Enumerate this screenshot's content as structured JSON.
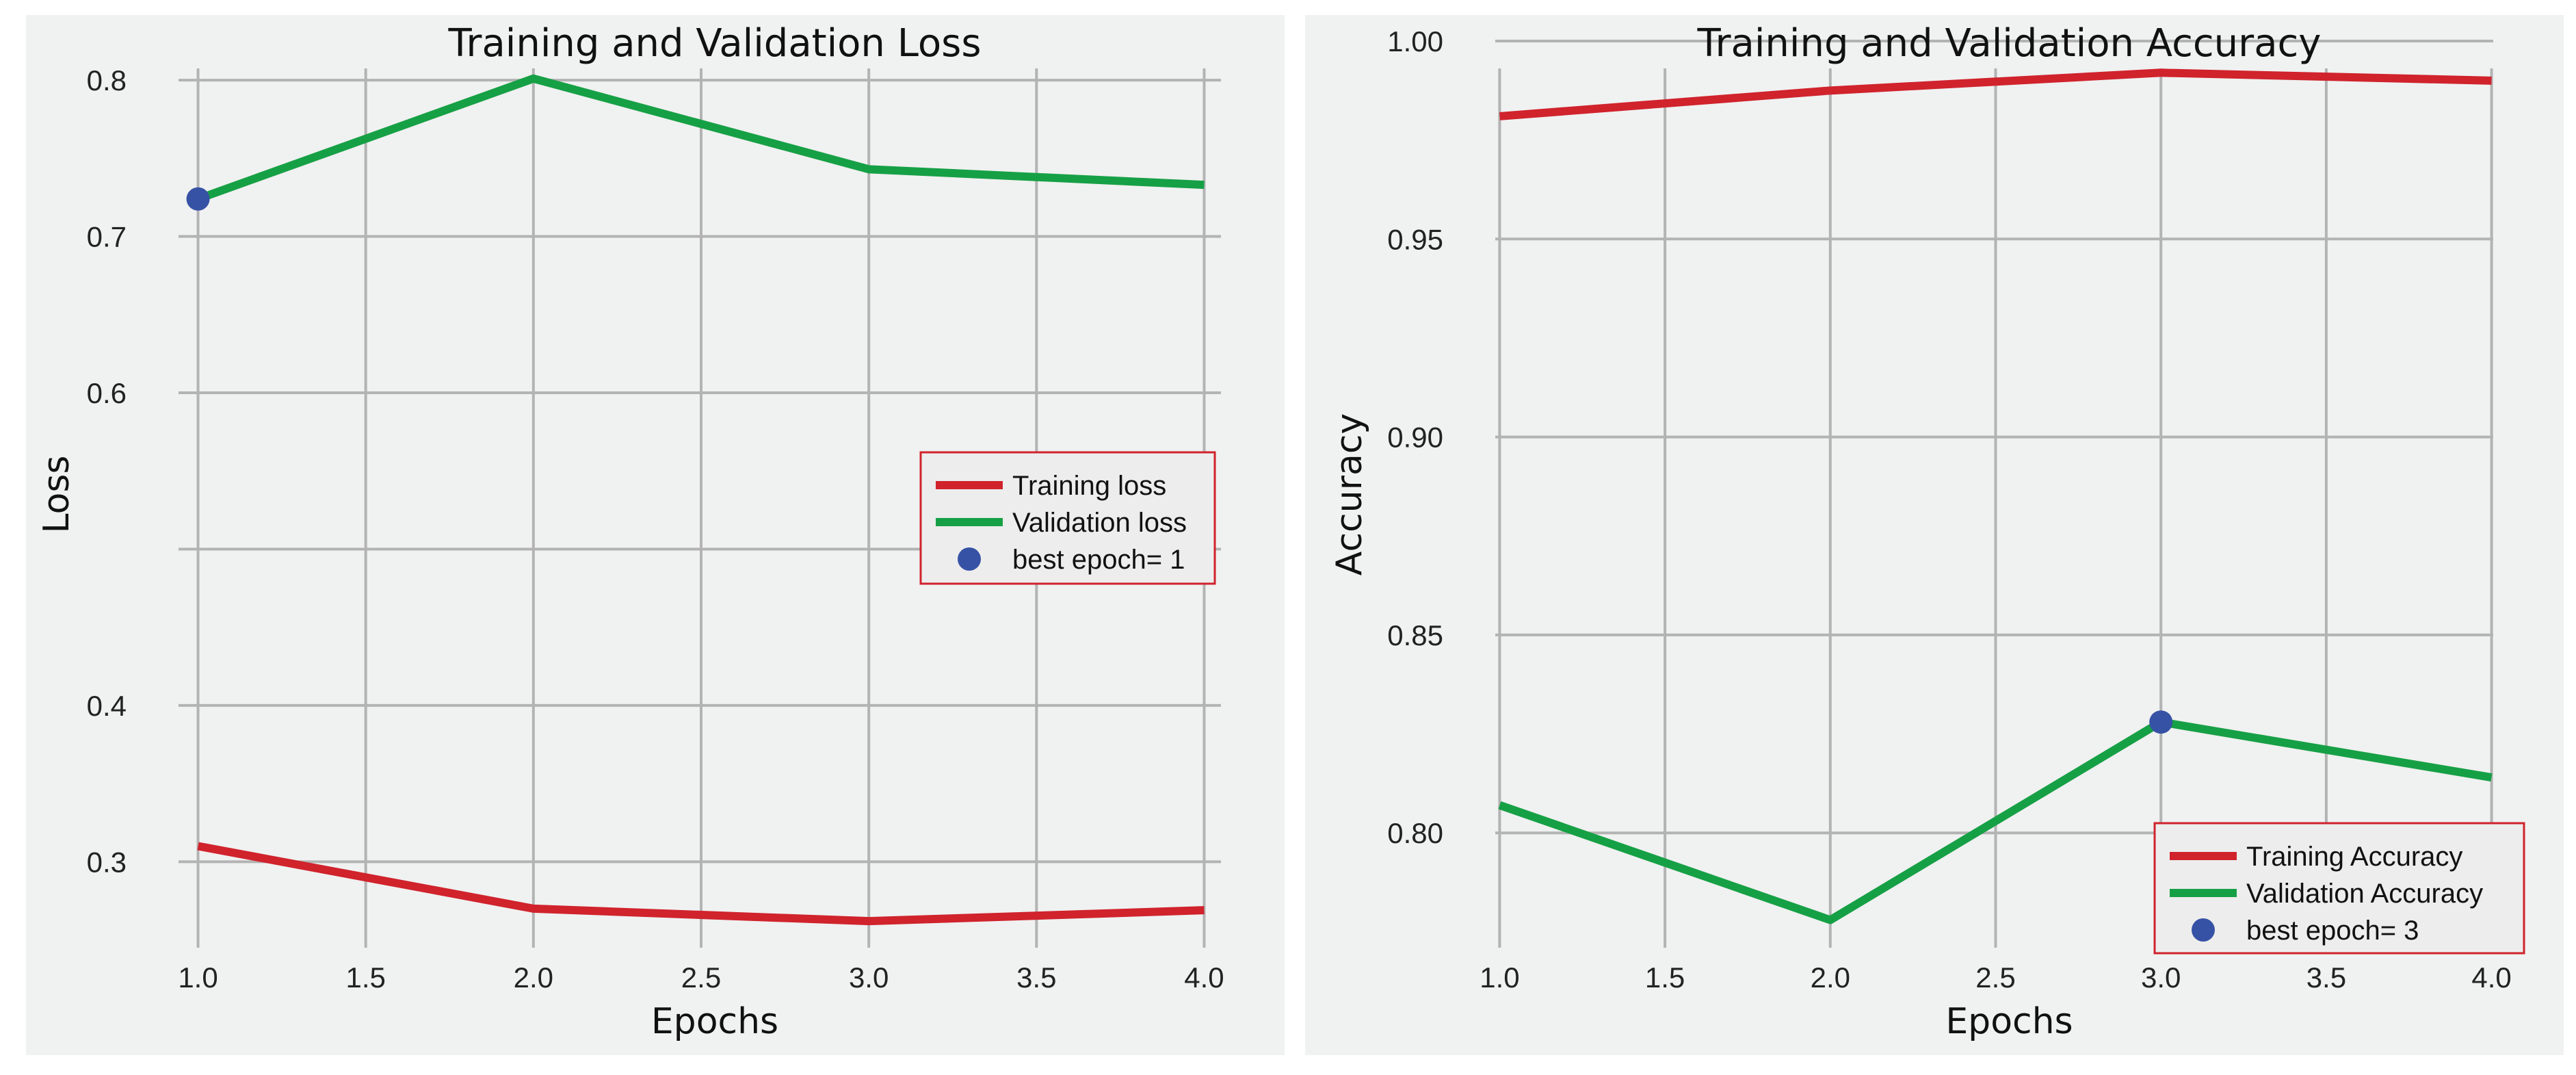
{
  "chart_data": [
    {
      "type": "line",
      "title": "Training and Validation Loss",
      "xlabel": "Epochs",
      "ylabel": "Loss",
      "x": [
        1.0,
        2.0,
        3.0,
        4.0
      ],
      "xlim": [
        0.95,
        4.05
      ],
      "ylim": [
        0.245,
        0.825
      ],
      "xticks": [
        1.0,
        1.5,
        2.0,
        2.5,
        3.0,
        3.5,
        4.0
      ],
      "xtick_labels": [
        "1.0",
        "1.5",
        "2.0",
        "2.5",
        "3.0",
        "3.5",
        "4.0"
      ],
      "yticks": [
        0.3,
        0.4,
        0.5,
        0.6,
        0.7,
        0.8
      ],
      "ytick_labels": [
        "0.3",
        "0.4",
        "",
        "0.6",
        "0.7",
        "0.8"
      ],
      "grid": true,
      "legend_position": "center-right",
      "series": [
        {
          "name": "Training loss",
          "values": [
            0.31,
            0.27,
            0.262,
            0.269
          ],
          "color": "#d0232c"
        },
        {
          "name": "Validation loss",
          "values": [
            0.724,
            0.801,
            0.743,
            0.733
          ],
          "color": "#16a045"
        }
      ],
      "best_point": {
        "label": "best epoch= 1",
        "x": 1.0,
        "y": 0.724,
        "color": "#3652a5"
      }
    },
    {
      "type": "line",
      "title": "Training and Validation Accuracy",
      "xlabel": "Epochs",
      "ylabel": "Accuracy",
      "x": [
        1.0,
        2.0,
        3.0,
        4.0
      ],
      "xlim": [
        0.995,
        4.005
      ],
      "ylim": [
        0.771,
        1.0
      ],
      "xticks": [
        1.0,
        1.5,
        2.0,
        2.5,
        3.0,
        3.5,
        4.0
      ],
      "xtick_labels": [
        "1.0",
        "1.5",
        "2.0",
        "2.5",
        "3.0",
        "3.5",
        "4.0"
      ],
      "yticks": [
        0.8,
        0.85,
        0.9,
        0.95,
        1.0
      ],
      "ytick_labels": [
        "0.80",
        "0.85",
        "0.90",
        "0.95",
        "1.00"
      ],
      "grid": true,
      "legend_position": "lower-right",
      "series": [
        {
          "name": "Training Accuracy",
          "values": [
            0.981,
            0.9875,
            0.992,
            0.99
          ],
          "color": "#d0232c"
        },
        {
          "name": "Validation Accuracy",
          "values": [
            0.807,
            0.778,
            0.828,
            0.814
          ],
          "color": "#16a045"
        }
      ],
      "best_point": {
        "label": "best epoch= 3",
        "x": 3.0,
        "y": 0.828,
        "color": "#3652a5"
      }
    }
  ]
}
